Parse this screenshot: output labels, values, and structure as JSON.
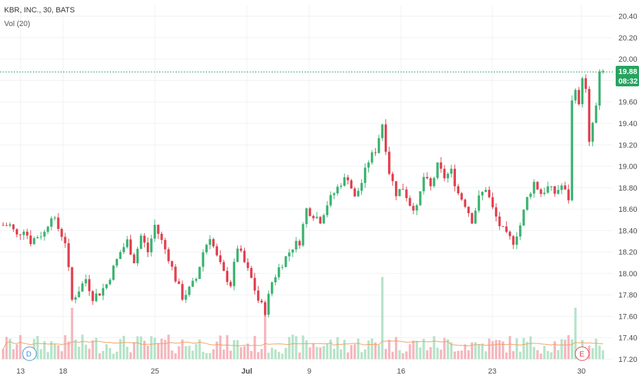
{
  "header": {
    "title": "KBR, INC., 30, BATS",
    "indicator": "Vol (20)"
  },
  "colors": {
    "up": "#3cb371",
    "down": "#e0414f",
    "up_vol": "#b7e3c8",
    "down_vol": "#f4b7bd",
    "ma": "#f0a060",
    "grid": "#eef1f4",
    "price_line": "#27a35f"
  },
  "last_price": {
    "price": "19.88",
    "countdown": "08:32",
    "value": 19.88
  },
  "markers": {
    "dividend": "D",
    "earnings": "E"
  },
  "chart_data": {
    "type": "candlestick",
    "title": "KBR, INC., 30, BATS",
    "ylim": [
      17.2,
      20.5
    ],
    "y_ticks": [
      "20.40",
      "20.20",
      "20.00",
      "19.80",
      "19.60",
      "19.40",
      "19.20",
      "19.00",
      "18.80",
      "18.60",
      "18.40",
      "18.20",
      "18.00",
      "17.80",
      "17.60",
      "17.40",
      "17.20"
    ],
    "x_ticks": [
      "13",
      "18",
      "25",
      "Jul",
      "9",
      "16",
      "23",
      "30"
    ],
    "close_path": [
      [
        0,
        18.45
      ],
      [
        2,
        18.45
      ],
      [
        4,
        18.35
      ],
      [
        6,
        18.42
      ],
      [
        8,
        18.3
      ],
      [
        10,
        18.35
      ],
      [
        12,
        18.38
      ],
      [
        14,
        18.55
      ],
      [
        16,
        18.42
      ],
      [
        18,
        18.3
      ],
      [
        20,
        17.75
      ],
      [
        22,
        17.85
      ],
      [
        24,
        17.95
      ],
      [
        26,
        17.78
      ],
      [
        28,
        17.82
      ],
      [
        30,
        17.9
      ],
      [
        32,
        18.05
      ],
      [
        34,
        18.2
      ],
      [
        36,
        18.3
      ],
      [
        38,
        18.12
      ],
      [
        40,
        18.35
      ],
      [
        42,
        18.2
      ],
      [
        44,
        18.45
      ],
      [
        46,
        18.3
      ],
      [
        48,
        18.15
      ],
      [
        50,
        17.95
      ],
      [
        52,
        17.78
      ],
      [
        54,
        17.85
      ],
      [
        56,
        17.95
      ],
      [
        58,
        18.2
      ],
      [
        60,
        18.35
      ],
      [
        62,
        18.15
      ],
      [
        64,
        18.0
      ],
      [
        66,
        17.9
      ],
      [
        68,
        18.25
      ],
      [
        70,
        18.1
      ],
      [
        72,
        17.95
      ],
      [
        74,
        17.75
      ],
      [
        76,
        17.65
      ],
      [
        78,
        17.92
      ],
      [
        80,
        18.05
      ],
      [
        82,
        18.15
      ],
      [
        84,
        18.25
      ],
      [
        86,
        18.3
      ],
      [
        88,
        18.6
      ],
      [
        90,
        18.55
      ],
      [
        92,
        18.5
      ],
      [
        94,
        18.65
      ],
      [
        96,
        18.75
      ],
      [
        98,
        18.85
      ],
      [
        100,
        18.9
      ],
      [
        102,
        18.7
      ],
      [
        104,
        18.85
      ],
      [
        106,
        19.05
      ],
      [
        108,
        19.15
      ],
      [
        110,
        19.4
      ],
      [
        112,
        18.95
      ],
      [
        114,
        18.75
      ],
      [
        116,
        18.8
      ],
      [
        118,
        18.65
      ],
      [
        120,
        18.6
      ],
      [
        122,
        18.9
      ],
      [
        124,
        18.8
      ],
      [
        126,
        19.0
      ],
      [
        128,
        18.9
      ],
      [
        130,
        18.95
      ],
      [
        132,
        18.75
      ],
      [
        134,
        18.65
      ],
      [
        136,
        18.5
      ],
      [
        138,
        18.7
      ],
      [
        140,
        18.8
      ],
      [
        142,
        18.6
      ],
      [
        144,
        18.45
      ],
      [
        146,
        18.35
      ],
      [
        148,
        18.3
      ],
      [
        150,
        18.45
      ],
      [
        152,
        18.7
      ],
      [
        154,
        18.85
      ],
      [
        156,
        18.75
      ],
      [
        158,
        18.8
      ],
      [
        160,
        18.75
      ],
      [
        162,
        18.82
      ],
      [
        164,
        18.7
      ],
      [
        165,
        19.6
      ],
      [
        166,
        19.75
      ],
      [
        167,
        19.55
      ],
      [
        168,
        19.85
      ],
      [
        169,
        19.7
      ],
      [
        170,
        19.2
      ],
      [
        171,
        19.4
      ],
      [
        172,
        19.55
      ],
      [
        173,
        19.85
      ],
      [
        174,
        19.88
      ]
    ]
  }
}
